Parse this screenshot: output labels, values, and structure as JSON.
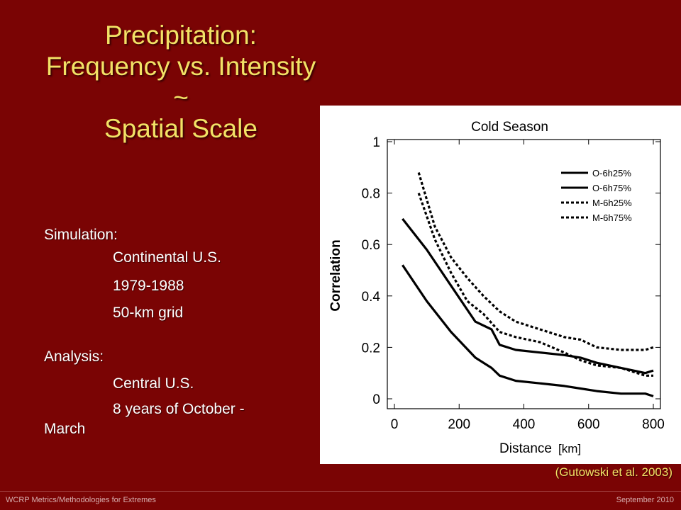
{
  "slide": {
    "title_lines": [
      "Precipitation:",
      "Frequency vs. Intensity",
      "~",
      "Spatial Scale"
    ],
    "simulation_heading": "Simulation:",
    "simulation_items": [
      "Continental U.S.",
      "1979-1988",
      "50-km grid"
    ],
    "analysis_heading": "Analysis:",
    "analysis_items": [
      "Central U.S.",
      "8 years of October -"
    ],
    "analysis_wrap": "March",
    "citation": "(Gutowski et al. 2003)",
    "footer_left": "WCRP Metrics/Methodologies for Extremes",
    "footer_right": "September 2010",
    "colors": {
      "background": "#7a0404",
      "title": "#f2e266",
      "text": "#ffffff"
    }
  },
  "chart_data": {
    "type": "line",
    "title": "Cold Season",
    "xlabel": "Distance",
    "xlabel_unit": "[km]",
    "ylabel": "Correlation",
    "xlim": [
      0,
      800
    ],
    "ylim": [
      0,
      1
    ],
    "xticks": [
      "0",
      "200",
      "400",
      "600",
      "800"
    ],
    "yticks": [
      "0",
      "0.2",
      "0.4",
      "0.6",
      "0.8",
      "1"
    ],
    "legend_position": "top-right",
    "grid": false,
    "series": [
      {
        "name": "O-6h25%",
        "style": "solid",
        "x": [
          25,
          100,
          175,
          250,
          300,
          325,
          375,
          450,
          525,
          575,
          625,
          700,
          775,
          800
        ],
        "y": [
          0.52,
          0.38,
          0.26,
          0.16,
          0.12,
          0.09,
          0.07,
          0.06,
          0.05,
          0.04,
          0.03,
          0.02,
          0.02,
          0.01
        ]
      },
      {
        "name": "O-6h75%",
        "style": "solid",
        "x": [
          25,
          100,
          175,
          250,
          300,
          325,
          375,
          450,
          525,
          575,
          625,
          700,
          775,
          800
        ],
        "y": [
          0.7,
          0.58,
          0.44,
          0.3,
          0.27,
          0.21,
          0.19,
          0.18,
          0.17,
          0.16,
          0.14,
          0.12,
          0.1,
          0.11
        ]
      },
      {
        "name": "M-6h25%",
        "style": "dashed",
        "x": [
          75,
          125,
          175,
          225,
          275,
          325,
          375,
          450,
          525,
          575,
          625,
          700,
          775,
          800
        ],
        "y": [
          0.8,
          0.62,
          0.49,
          0.38,
          0.33,
          0.26,
          0.24,
          0.22,
          0.18,
          0.15,
          0.13,
          0.12,
          0.09,
          0.09
        ]
      },
      {
        "name": "M-6h75%",
        "style": "dashed",
        "x": [
          75,
          125,
          175,
          225,
          275,
          325,
          375,
          450,
          525,
          575,
          625,
          700,
          775,
          800
        ],
        "y": [
          0.88,
          0.67,
          0.55,
          0.47,
          0.4,
          0.34,
          0.3,
          0.27,
          0.24,
          0.23,
          0.2,
          0.19,
          0.19,
          0.2
        ]
      }
    ]
  }
}
